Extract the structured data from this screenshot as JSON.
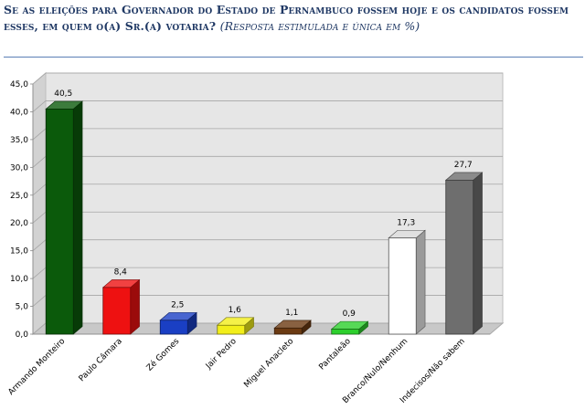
{
  "title": {
    "main": "Se as eleições para Governador do Estado de Pernambuco fossem hoje e os candidatos fossem esses, em quem o(a) Sr.(a) votaria?",
    "sub": "(Resposta estimulada e única em %)"
  },
  "chart_data": {
    "type": "bar",
    "categories": [
      "Armando Monteiro",
      "Paulo Câmara",
      "Zé Gomes",
      "Jair Pedro",
      "Miguel Anacleto",
      "Pantaleão",
      "Branco/Nulo/Nenhum",
      "Indecisos/Não sabem"
    ],
    "values": [
      40.5,
      8.4,
      2.5,
      1.6,
      1.1,
      0.9,
      17.3,
      27.7
    ],
    "value_labels": [
      "40,5",
      "8,4",
      "2,5",
      "1,6",
      "1,1",
      "0,9",
      "17,3",
      "27,7"
    ],
    "colors": [
      "#0b5a0b",
      "#ee1111",
      "#1a3fc4",
      "#f2ee1a",
      "#6b3a12",
      "#2ccf2c",
      "#ffffff",
      "#6e6e6e"
    ],
    "ylim": [
      0,
      45
    ],
    "yticks": [
      "0,0",
      "5,0",
      "10,0",
      "15,0",
      "20,0",
      "25,0",
      "30,0",
      "35,0",
      "40,0",
      "45,0"
    ],
    "grid": true,
    "xlabel": "",
    "ylabel": ""
  }
}
